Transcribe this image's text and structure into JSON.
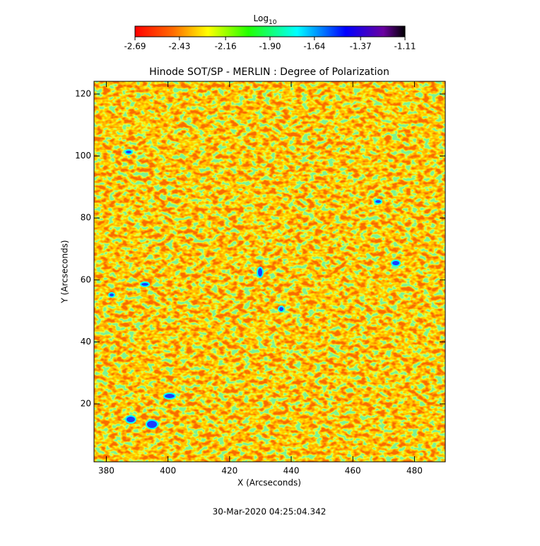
{
  "chart_data": {
    "type": "heatmap",
    "title": "Hinode SOT/SP - MERLIN : Degree of Polarization",
    "x_label": "X (Arcseconds)",
    "y_label": "Y (Arcseconds)",
    "footer": "30-Mar-2020 04:25:04.342",
    "colorbar": {
      "title": "Log",
      "title_subscript": "10",
      "clim": [
        -2.69,
        -1.11
      ],
      "ticks": [
        -2.69,
        -2.43,
        -2.16,
        {
          "value": -1.9,
          "label": "-1.90"
        },
        -1.64,
        -1.37,
        -1.11
      ]
    },
    "xlim": [
      376,
      490
    ],
    "xticks": [
      380,
      400,
      420,
      440,
      460,
      480
    ],
    "ylim": [
      1.3,
      124.1
    ],
    "yticks": [
      20,
      40,
      60,
      80,
      100,
      120
    ]
  }
}
